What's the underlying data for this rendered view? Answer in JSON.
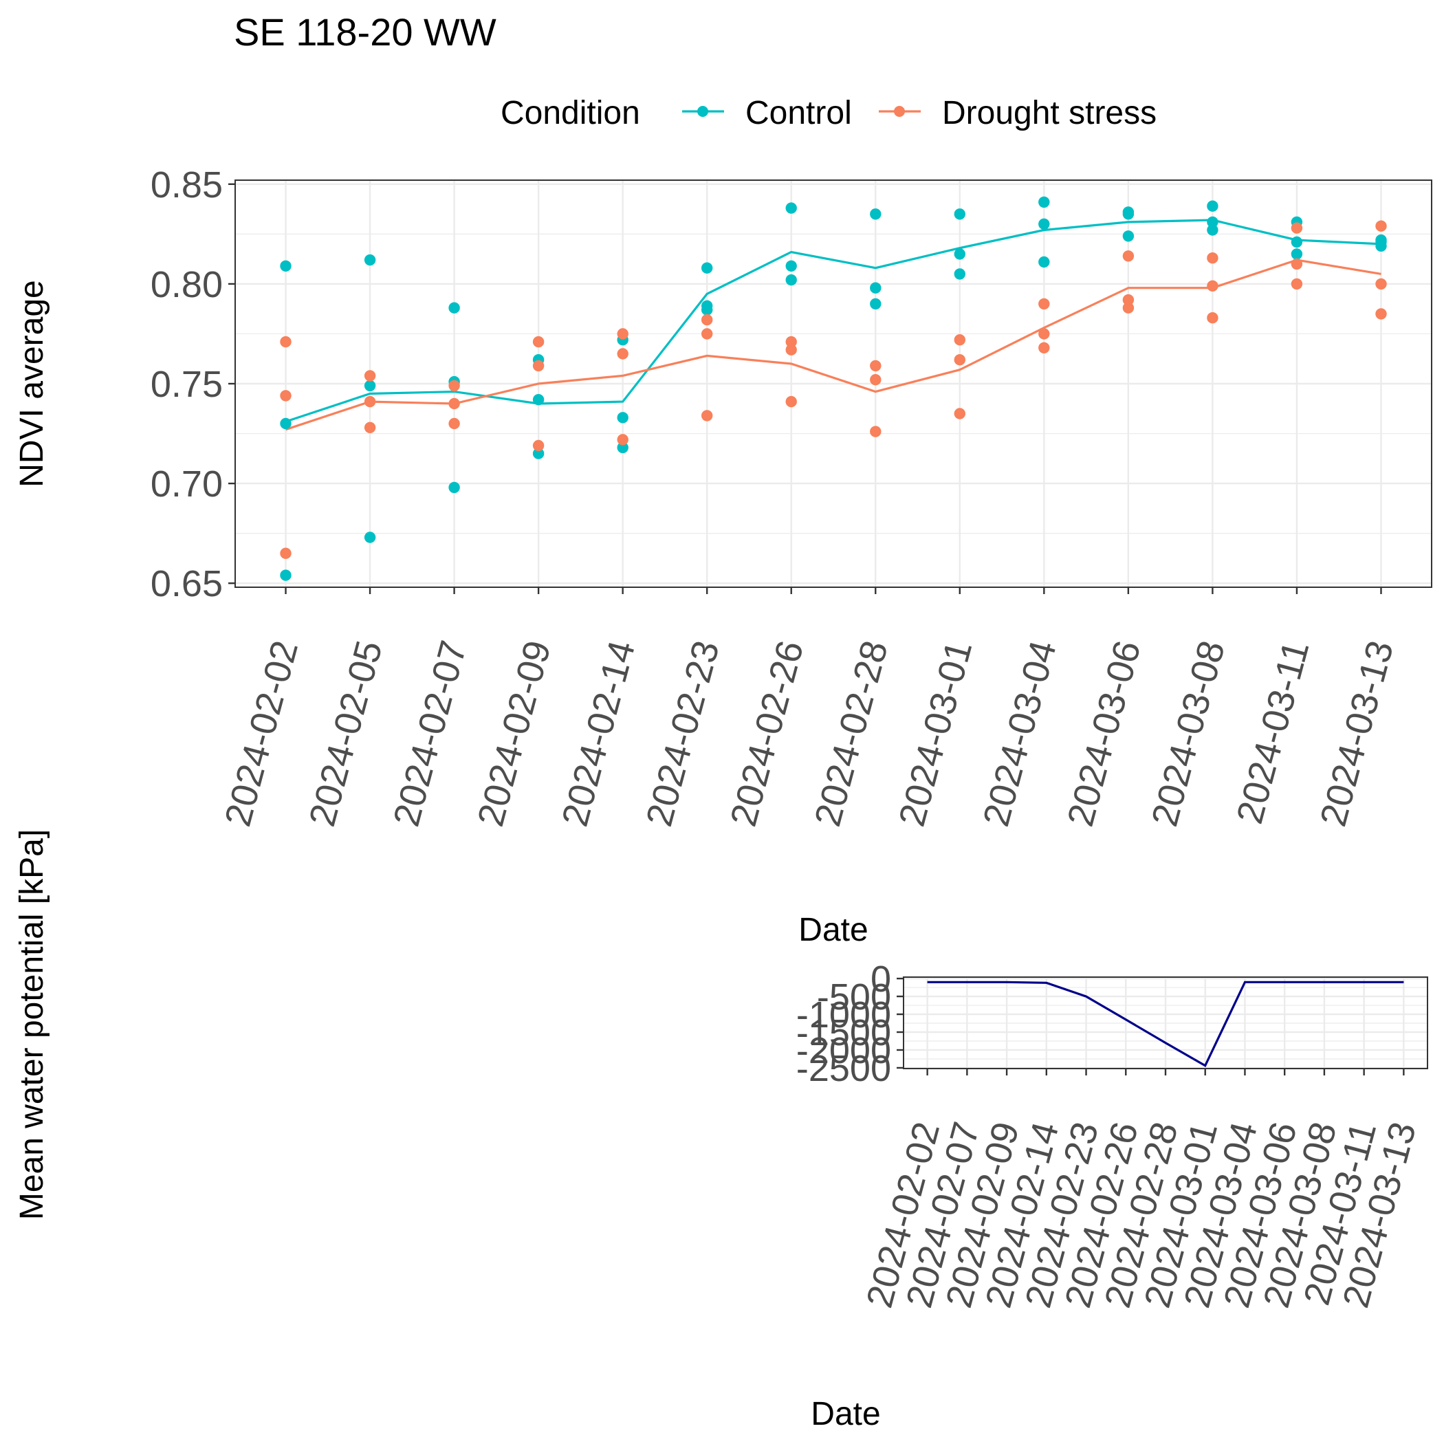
{
  "chart_data": [
    {
      "type": "scatter",
      "title": "SE 118-20 WW",
      "xlabel": "Date",
      "ylabel": "NDVI average",
      "ylim": [
        0.648,
        0.852
      ],
      "yticks": [
        "0.65",
        "0.70",
        "0.75",
        "0.80",
        "0.85"
      ],
      "grid": true,
      "legend": {
        "position": "top",
        "title": "Condition",
        "entries": [
          "Control",
          "Drought stress"
        ]
      },
      "categories": [
        "2024-02-02",
        "2024-02-05",
        "2024-02-07",
        "2024-02-09",
        "2024-02-14",
        "2024-02-23",
        "2024-02-26",
        "2024-02-28",
        "2024-03-01",
        "2024-03-04",
        "2024-03-06",
        "2024-03-08",
        "2024-03-11",
        "2024-03-13"
      ],
      "series": [
        {
          "name": "Control",
          "color": "#00BFC4",
          "points": [
            [
              0.809,
              0.73,
              0.654
            ],
            [
              0.812,
              0.749,
              0.673
            ],
            [
              0.788,
              0.751,
              0.698
            ],
            [
              0.762,
              0.742,
              0.715
            ],
            [
              0.772,
              0.733,
              0.718
            ],
            [
              0.808,
              0.789,
              0.787
            ],
            [
              0.838,
              0.809,
              0.802
            ],
            [
              0.835,
              0.798,
              0.79
            ],
            [
              0.835,
              0.815,
              0.805
            ],
            [
              0.841,
              0.83,
              0.811
            ],
            [
              0.836,
              0.835,
              0.824
            ],
            [
              0.839,
              0.831,
              0.827
            ],
            [
              0.831,
              0.821,
              0.815
            ],
            [
              0.822,
              0.821,
              0.819
            ]
          ],
          "mean": [
            0.731,
            0.745,
            0.746,
            0.74,
            0.741,
            0.795,
            0.816,
            0.808,
            0.818,
            0.827,
            0.831,
            0.832,
            0.822,
            0.82
          ]
        },
        {
          "name": "Drought stress",
          "color": "#F8805A",
          "points": [
            [
              0.771,
              0.744,
              0.665
            ],
            [
              0.754,
              0.741,
              0.728
            ],
            [
              0.749,
              0.74,
              0.73
            ],
            [
              0.771,
              0.759,
              0.719
            ],
            [
              0.775,
              0.765,
              0.722
            ],
            [
              0.782,
              0.775,
              0.734
            ],
            [
              0.771,
              0.767,
              0.741
            ],
            [
              0.759,
              0.752,
              0.726
            ],
            [
              0.772,
              0.762,
              0.735
            ],
            [
              0.79,
              0.775,
              0.768
            ],
            [
              0.814,
              0.792,
              0.788
            ],
            [
              0.813,
              0.799,
              0.783
            ],
            [
              0.828,
              0.81,
              0.8
            ],
            [
              0.829,
              0.8,
              0.785
            ]
          ],
          "mean": [
            0.727,
            0.741,
            0.74,
            0.75,
            0.754,
            0.764,
            0.76,
            0.746,
            0.757,
            0.778,
            0.798,
            0.798,
            0.812,
            0.805
          ]
        }
      ]
    },
    {
      "type": "line",
      "xlabel": "Date",
      "ylabel": "Mean water potential [kPa]",
      "ylim": [
        -2520,
        40
      ],
      "yticks": [
        "0",
        "-500",
        "-1000",
        "-1500",
        "-2000",
        "-2500"
      ],
      "grid": true,
      "categories": [
        "2024-02-02",
        "2024-02-07",
        "2024-02-09",
        "2024-02-14",
        "2024-02-23",
        "2024-02-26",
        "2024-02-28",
        "2024-03-01",
        "2024-03-04",
        "2024-03-06",
        "2024-03-08",
        "2024-03-11",
        "2024-03-13"
      ],
      "series": [
        {
          "color": "#00008B",
          "values": [
            -100,
            -100,
            -100,
            -120,
            -500,
            -1150,
            -1800,
            -2440,
            -100,
            -100,
            -100,
            -100,
            -100
          ]
        }
      ]
    }
  ]
}
